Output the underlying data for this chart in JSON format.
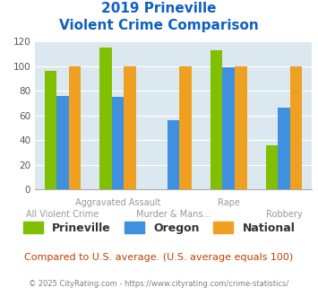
{
  "title_line1": "2019 Prineville",
  "title_line2": "Violent Crime Comparison",
  "categories": [
    "All Violent Crime",
    "Aggravated Assault",
    "Murder & Mans...",
    "Rape",
    "Robbery"
  ],
  "top_labels": [
    "",
    "Aggravated Assault",
    "",
    "Rape",
    ""
  ],
  "bot_labels": [
    "All Violent Crime",
    "",
    "Murder & Mans...",
    "",
    "Robbery"
  ],
  "series": {
    "Prineville": [
      96,
      115,
      0,
      113,
      36
    ],
    "Oregon": [
      76,
      75,
      56,
      99,
      66
    ],
    "National": [
      100,
      100,
      100,
      100,
      100
    ]
  },
  "colors": {
    "Prineville": "#80c000",
    "Oregon": "#4090e0",
    "National": "#f0a020"
  },
  "ylim": [
    0,
    120
  ],
  "yticks": [
    0,
    20,
    40,
    60,
    80,
    100,
    120
  ],
  "background_color": "#dce8f0",
  "title_color": "#1060c0",
  "subtitle_note": "Compared to U.S. average. (U.S. average equals 100)",
  "subtitle_note_color": "#c04000",
  "copyright_text": "© 2025 CityRating.com - https://www.cityrating.com/crime-statistics/",
  "copyright_color": "#808080"
}
